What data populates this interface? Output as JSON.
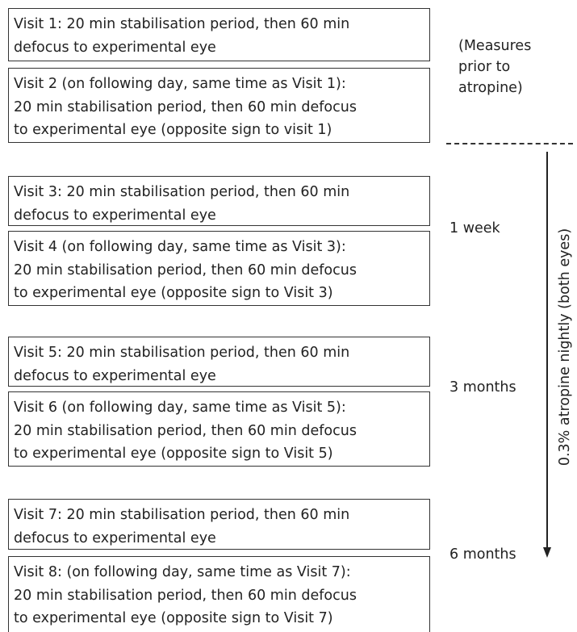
{
  "boxes": [
    [
      "Visit 1: 20 min stabilisation period, then 60 min",
      "defocus to experimental eye"
    ],
    [
      "Visit 2 (on following day, same time as Visit 1):",
      "20 min stabilisation period, then 60 min defocus",
      "to experimental eye (opposite sign to visit 1)"
    ],
    [
      "Visit 3: 20 min stabilisation period, then 60 min",
      "defocus to experimental eye"
    ],
    [
      "Visit 4 (on following day, same time as Visit 3):",
      "20 min stabilisation period, then 60 min defocus",
      "to experimental eye (opposite sign to Visit 3)"
    ],
    [
      "Visit 5: 20 min stabilisation period, then 60 min",
      "defocus to experimental eye"
    ],
    [
      "Visit 6 (on following day, same time as Visit 5):",
      "20 min stabilisation period, then 60 min defocus",
      "to experimental eye (opposite sign to Visit 5)"
    ],
    [
      "Visit 7: 20 min stabilisation period, then 60 min",
      "defocus to experimental eye"
    ],
    [
      "Visit 8: (on following day, same time as Visit 7):",
      "20 min stabilisation period, then 60 min defocus",
      "to experimental eye (opposite sign to Visit 7)"
    ]
  ],
  "pre_label": [
    "(Measures",
    "prior to",
    "atropine)"
  ],
  "time_labels": [
    "1 week",
    "3 months",
    "6 months"
  ],
  "arrow_label": "0.3% atropine nightly (both eyes)"
}
